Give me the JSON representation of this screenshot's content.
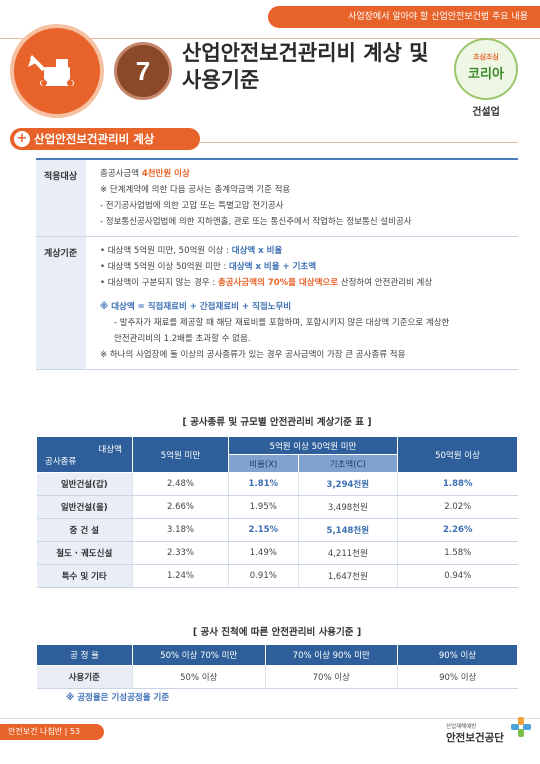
{
  "header": {
    "topbar": "사업장에서 알아야 할 산업안전보건법 주요 내용",
    "number": "7",
    "title_line1": "산업안전보건관리비 계상 및",
    "title_line2": "사용기준",
    "badge_top": "조심조심",
    "badge_main": "코리아",
    "badge_sub": "건설업"
  },
  "section": {
    "plus": "+",
    "title": "산업안전보건관리비 계상"
  },
  "info": {
    "apply_label": "적용대상",
    "apply_l1_a": "총공사금액 ",
    "apply_l1_b": "4천만원 이상",
    "apply_l2": "※ 단계계약에 의한 다음 공사는 총계약금액 기준 적용",
    "apply_l3": "- 전기공사업법에 의한 고압 또는 특별고압 전기공사",
    "apply_l4": "- 정보통신공사업법에 의한 지하맨홀, 관로 또는 통신주에서 작업하는 정보통신 설비공사",
    "calc_label": "계상기준",
    "calc_l1_a": "• 대상액 5억원 미만, 50억원 이상 : ",
    "calc_l1_b": "대상액 x 비율",
    "calc_l2_a": "• 대상액 5억원 이상 50억원 미만 : ",
    "calc_l2_b": "대상액 x 비율 + 기초액",
    "calc_l3_a": "• 대상액이 구분되지 않는 경우 : ",
    "calc_l3_b": "총공사금액의 70%를 대상액으로",
    "calc_l3_c": " 산정하여 안전관리비 계상",
    "calc_l4": "※ 대상액 = 직접재료비 + 간접재료비 + 직접노무비",
    "calc_l5": "- 발주자가 재료를 제공할 때 해당 재료비를 포함하며, 포함시키지 않은 대상액 기준으로 계상한",
    "calc_l6": "안전관리비의 1.2배를 초과할 수 없음.",
    "calc_l7": "※ 하나의 사업장에 둘 이상의 공사종류가 있는 경우 공사금액이 가장 큰 공사종류 적용"
  },
  "table1": {
    "caption": "[ 공사종류 및 규모별 안전관리비 계상기준 표 ]",
    "h_target": "대상액",
    "h_type": "공사종류",
    "h_under5": "5억원 미만",
    "h_mid": "5억원 이상 50억원 미만",
    "h_rate": "비율(X)",
    "h_base": "기초액(C)",
    "h_over50": "50억원 이상",
    "rows": [
      {
        "name": "일반건설(갑)",
        "a": "2.48%",
        "b": "1.81%",
        "c": "3,294천원",
        "d": "1.88%"
      },
      {
        "name": "일반건설(을)",
        "a": "2.66%",
        "b": "1.95%",
        "c": "3,498천원",
        "d": "2.02%"
      },
      {
        "name": "중 건 설",
        "a": "3.18%",
        "b": "2.15%",
        "c": "5,148천원",
        "d": "2.26%"
      },
      {
        "name": "철도 · 궤도신설",
        "a": "2.33%",
        "b": "1.49%",
        "c": "4,211천원",
        "d": "1.58%"
      },
      {
        "name": "특수 및 기타",
        "a": "1.24%",
        "b": "0.91%",
        "c": "1,647천원",
        "d": "0.94%"
      }
    ]
  },
  "table2": {
    "caption": "[ 공사 진척에 따른 안전관리비 사용기준 ]",
    "h0": "공 정 율",
    "h1": "50% 이상 70% 미만",
    "h2": "70% 이상 90% 미만",
    "h3": "90% 이상",
    "r0": "사용기준",
    "r1": "50% 이상",
    "r2": "70% 이상",
    "r3": "90% 이상",
    "note": "※ 공정율은 기성공정율 기준"
  },
  "footer": {
    "left": "안전보건 나침반 | 53",
    "logo_small": "산업재해예방",
    "logo_main": "안전보건공단"
  },
  "colors": {
    "accent": "#e8632a",
    "navy": "#2f5f9a",
    "blue_text": "#3d6fb5"
  }
}
